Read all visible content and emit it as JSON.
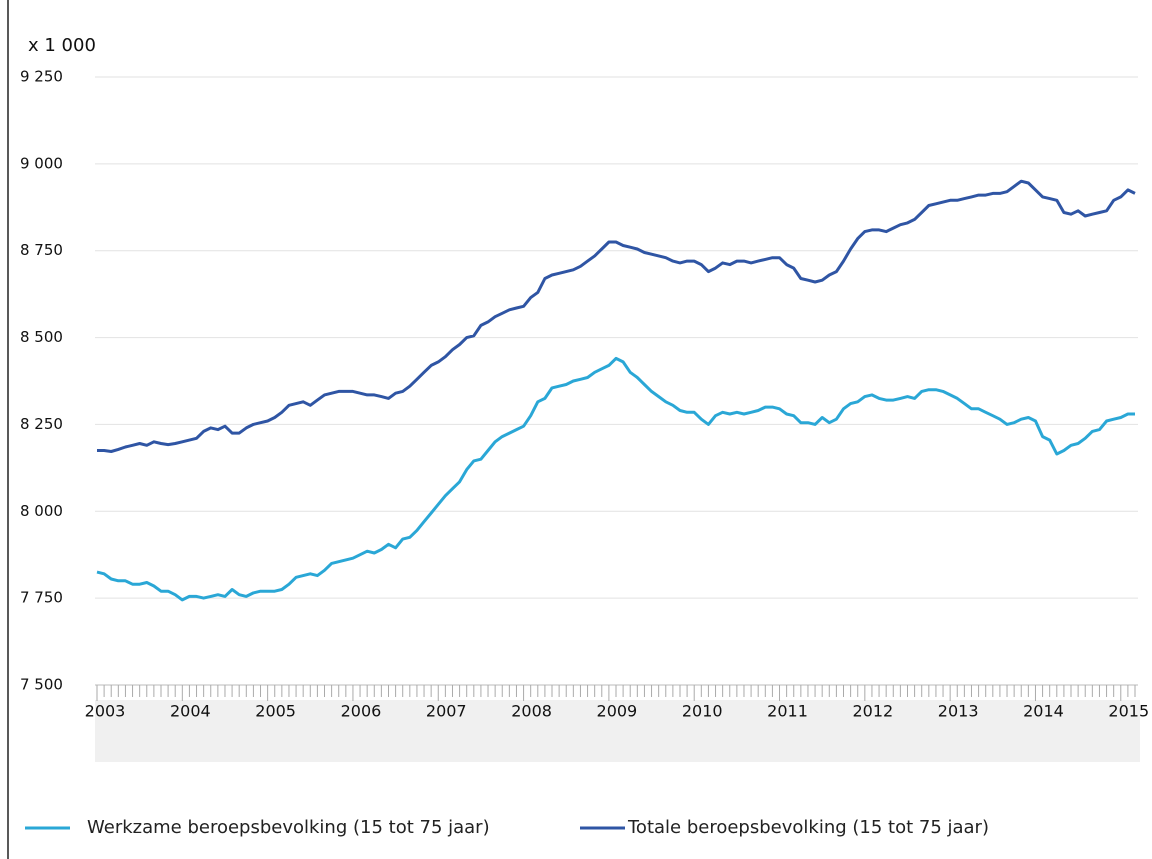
{
  "chart_data": {
    "type": "line",
    "y_unit": "x 1 000",
    "categories": [
      "2003",
      null,
      null,
      null,
      null,
      null,
      null,
      null,
      null,
      null,
      null,
      null,
      "2004",
      null,
      null,
      null,
      null,
      null,
      null,
      null,
      null,
      null,
      null,
      null,
      "2005",
      null,
      null,
      null,
      null,
      null,
      null,
      null,
      null,
      null,
      null,
      null,
      "2006",
      null,
      null,
      null,
      null,
      null,
      null,
      null,
      null,
      null,
      null,
      null,
      "2007",
      null,
      null,
      null,
      null,
      null,
      null,
      null,
      null,
      null,
      null,
      null,
      "2008",
      null,
      null,
      null,
      null,
      null,
      null,
      null,
      null,
      null,
      null,
      null,
      "2009",
      null,
      null,
      null,
      null,
      null,
      null,
      null,
      null,
      null,
      null,
      null,
      "2010",
      null,
      null,
      null,
      null,
      null,
      null,
      null,
      null,
      null,
      null,
      null,
      "2011",
      null,
      null,
      null,
      null,
      null,
      null,
      null,
      null,
      null,
      null,
      null,
      "2012",
      null,
      null,
      null,
      null,
      null,
      null,
      null,
      null,
      null,
      null,
      null,
      "2013",
      null,
      null,
      null,
      null,
      null,
      null,
      null,
      null,
      null,
      null,
      null,
      "2014",
      null,
      null,
      null,
      null,
      null,
      null,
      null,
      null,
      null,
      null,
      null,
      "2015",
      null,
      null
    ],
    "series": [
      {
        "name": "Werkzame beroepsbevolking (15 tot 75 jaar)",
        "color": "#2aa7d6",
        "values": [
          7825,
          7820,
          7805,
          7800,
          7800,
          7790,
          7790,
          7795,
          7785,
          7770,
          7770,
          7760,
          7745,
          7755,
          7755,
          7750,
          7755,
          7760,
          7755,
          7775,
          7760,
          7755,
          7765,
          7770,
          7770,
          7770,
          7775,
          7790,
          7810,
          7815,
          7820,
          7815,
          7830,
          7850,
          7855,
          7860,
          7865,
          7875,
          7885,
          7880,
          7890,
          7905,
          7895,
          7920,
          7925,
          7945,
          7970,
          7995,
          8020,
          8045,
          8065,
          8085,
          8120,
          8145,
          8150,
          8175,
          8200,
          8215,
          8225,
          8235,
          8245,
          8275,
          8315,
          8325,
          8355,
          8360,
          8365,
          8375,
          8380,
          8385,
          8400,
          8410,
          8420,
          8440,
          8430,
          8400,
          8385,
          8365,
          8345,
          8330,
          8315,
          8305,
          8290,
          8285,
          8285,
          8265,
          8250,
          8275,
          8285,
          8280,
          8285,
          8280,
          8285,
          8290,
          8300,
          8300,
          8295,
          8280,
          8275,
          8255,
          8255,
          8250,
          8270,
          8255,
          8265,
          8295,
          8310,
          8315,
          8330,
          8335,
          8325,
          8320,
          8320,
          8325,
          8330,
          8325,
          8345,
          8350,
          8350,
          8345,
          8335,
          8325,
          8310,
          8295,
          8295,
          8285,
          8275,
          8265,
          8250,
          8255,
          8265,
          8270,
          8260,
          8215,
          8205,
          8165,
          8175,
          8190,
          8195,
          8210,
          8230,
          8235,
          8260,
          8265,
          8270,
          8280,
          8280
        ]
      },
      {
        "name": "Totale beroepsbevolking (15 tot 75 jaar)",
        "color": "#2f55a4",
        "values": [
          8175,
          8175,
          8172,
          8178,
          8185,
          8190,
          8195,
          8190,
          8200,
          8195,
          8192,
          8195,
          8200,
          8205,
          8210,
          8230,
          8240,
          8235,
          8245,
          8225,
          8225,
          8240,
          8250,
          8255,
          8260,
          8270,
          8285,
          8305,
          8310,
          8315,
          8305,
          8320,
          8335,
          8340,
          8345,
          8345,
          8345,
          8340,
          8335,
          8335,
          8330,
          8325,
          8340,
          8345,
          8360,
          8380,
          8400,
          8420,
          8430,
          8445,
          8465,
          8480,
          8500,
          8505,
          8535,
          8545,
          8560,
          8570,
          8580,
          8585,
          8590,
          8615,
          8630,
          8670,
          8680,
          8685,
          8690,
          8695,
          8705,
          8720,
          8735,
          8755,
          8775,
          8775,
          8765,
          8760,
          8755,
          8745,
          8740,
          8735,
          8730,
          8720,
          8715,
          8720,
          8720,
          8710,
          8690,
          8700,
          8715,
          8710,
          8720,
          8720,
          8715,
          8720,
          8725,
          8730,
          8730,
          8710,
          8700,
          8670,
          8665,
          8660,
          8665,
          8680,
          8690,
          8720,
          8755,
          8785,
          8805,
          8810,
          8810,
          8805,
          8815,
          8825,
          8830,
          8840,
          8860,
          8880,
          8885,
          8890,
          8895,
          8895,
          8900,
          8905,
          8910,
          8910,
          8915,
          8915,
          8920,
          8935,
          8950,
          8945,
          8925,
          8905,
          8900,
          8895,
          8860,
          8855,
          8865,
          8850,
          8855,
          8860,
          8865,
          8895,
          8905,
          8925,
          8915
        ]
      }
    ],
    "ylim": [
      7500,
      9250
    ],
    "yticks": [
      {
        "value": 7500,
        "label": "7 500"
      },
      {
        "value": 7750,
        "label": "7 750"
      },
      {
        "value": 8000,
        "label": "8 000"
      },
      {
        "value": 8250,
        "label": "8 250"
      },
      {
        "value": 8500,
        "label": "8 500"
      },
      {
        "value": 8750,
        "label": "8 750"
      },
      {
        "value": 9000,
        "label": "9 000"
      },
      {
        "value": 9250,
        "label": "9 250"
      }
    ],
    "grid": true
  }
}
